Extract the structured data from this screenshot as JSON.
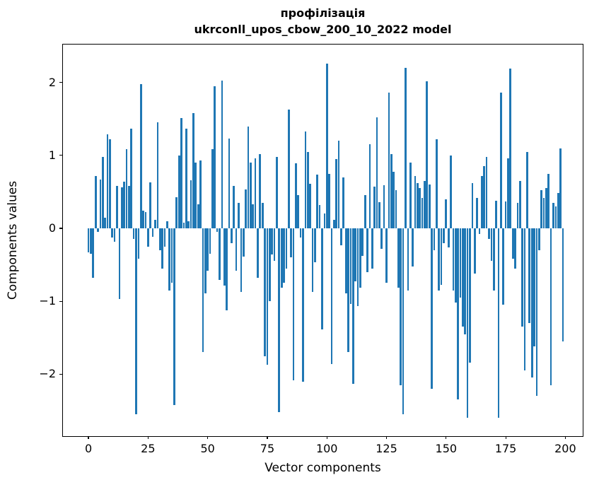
{
  "chart_data": {
    "type": "bar",
    "title_line1": "профілізація",
    "title_line2": "ukrconll_upos_cbow_200_10_2022 model",
    "xlabel": "Vector components",
    "ylabel": "Components values",
    "bar_color": "#1f77b4",
    "bar_width_units": 0.8,
    "grid": false,
    "legend": "none",
    "xlim": [
      -10.7,
      207.3
    ],
    "ylim": [
      -2.85,
      2.52
    ],
    "x_ticks": [
      0,
      25,
      50,
      75,
      100,
      125,
      150,
      175,
      200
    ],
    "x_tick_labels": [
      "0",
      "25",
      "50",
      "75",
      "100",
      "125",
      "150",
      "175",
      "200"
    ],
    "y_ticks": [
      -2,
      -1,
      0,
      1,
      2
    ],
    "y_tick_labels": [
      "−2",
      "−1",
      "0",
      "1",
      "2"
    ],
    "x_start": 0,
    "values": [
      -0.33,
      -0.35,
      -0.68,
      0.72,
      -0.05,
      0.67,
      0.98,
      0.15,
      1.29,
      1.22,
      -0.13,
      -0.18,
      0.58,
      -0.97,
      0.56,
      0.64,
      1.09,
      0.58,
      1.37,
      -0.15,
      -2.55,
      -0.42,
      1.98,
      0.24,
      0.22,
      -0.25,
      0.63,
      -0.12,
      0.12,
      1.45,
      -0.3,
      -0.55,
      -0.25,
      0.1,
      -0.85,
      -0.75,
      -2.42,
      0.43,
      1.0,
      1.51,
      0.08,
      1.37,
      0.1,
      0.66,
      1.58,
      0.9,
      0.33,
      0.93,
      -1.7,
      -0.89,
      -0.58,
      -0.35,
      1.09,
      1.95,
      -0.05,
      -0.71,
      2.03,
      -0.79,
      -1.12,
      1.23,
      -0.2,
      0.58,
      -0.58,
      0.35,
      -0.87,
      -0.39,
      0.53,
      1.4,
      0.9,
      0.33,
      0.96,
      -0.68,
      1.02,
      0.35,
      -1.75,
      -1.87,
      -1.0,
      -0.36,
      -0.45,
      0.98,
      -2.52,
      -0.81,
      -0.75,
      -0.55,
      1.63,
      -0.4,
      -2.08,
      0.89,
      0.46,
      -0.13,
      -2.1,
      1.33,
      1.05,
      0.61,
      -0.87,
      -0.47,
      0.74,
      0.32,
      -1.39,
      0.2,
      2.26,
      0.75,
      -1.86,
      0.12,
      0.95,
      1.2,
      -0.23,
      0.7,
      -0.89,
      -1.7,
      -1.04,
      -2.13,
      -0.73,
      -1.07,
      -0.81,
      -0.38,
      0.46,
      -0.6,
      1.15,
      -0.55,
      0.57,
      1.52,
      0.36,
      -0.28,
      0.59,
      -0.75,
      1.86,
      1.02,
      0.78,
      0.52,
      -0.81,
      -2.15,
      -2.55,
      2.2,
      -0.85,
      0.9,
      -0.52,
      0.72,
      0.62,
      0.55,
      0.42,
      0.65,
      2.02,
      0.6,
      -2.2,
      -0.3,
      1.22,
      -0.85,
      -0.78,
      -0.2,
      0.4,
      -0.26,
      1.0,
      -0.85,
      -1.02,
      -2.35,
      -0.95,
      -1.35,
      -1.45,
      -2.6,
      -1.84,
      0.62,
      -0.62,
      0.42,
      -0.08,
      0.72,
      0.85,
      0.98,
      -0.15,
      -0.45,
      -0.85,
      0.38,
      -2.6,
      1.86,
      -1.05,
      0.37,
      0.96,
      2.19,
      -0.42,
      -0.55,
      0.35,
      0.65,
      -1.35,
      -1.95,
      1.05,
      -1.3,
      -2.05,
      -1.62,
      -2.3,
      -0.3,
      0.52,
      0.42,
      0.55,
      0.75,
      -2.15,
      0.35,
      0.3,
      0.48,
      1.1,
      -1.55
    ]
  }
}
